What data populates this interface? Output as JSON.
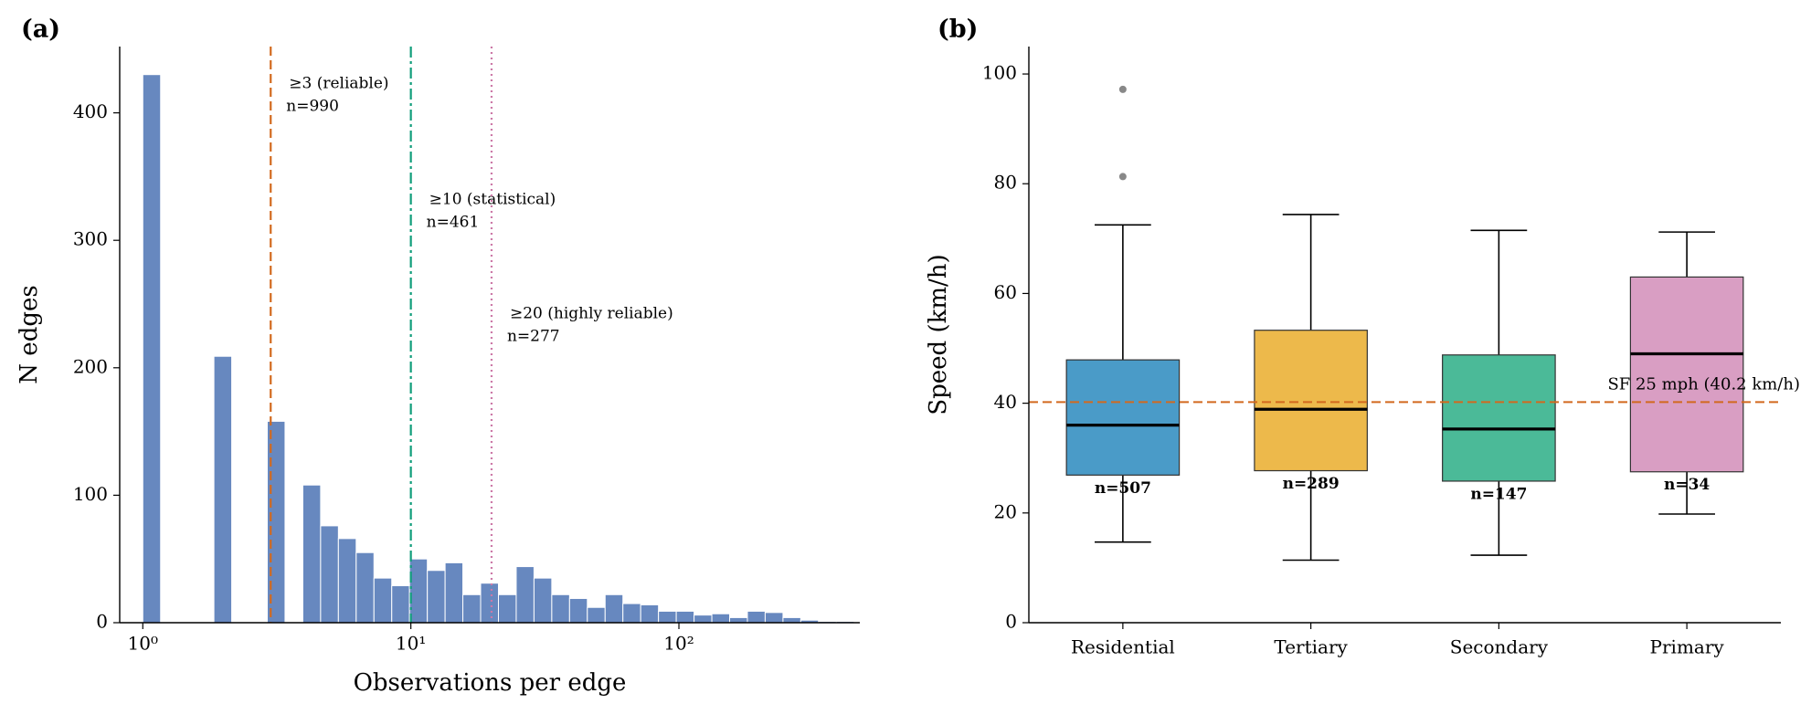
{
  "chart_data": [
    {
      "type": "histogram",
      "panel_label": "(a)",
      "x_label": "Observations per edge",
      "y_label": "N edges",
      "log_x": true,
      "color": "#6788bf",
      "bins": [
        1,
        1.165,
        1.358,
        1.581,
        1.842,
        2.146,
        2.5,
        2.913,
        3.393,
        3.953,
        4.606,
        5.366,
        6.252,
        7.284,
        8.486,
        9.886,
        11.52,
        13.42,
        15.63,
        18.21,
        21.22,
        24.72,
        28.8,
        33.55,
        39.09,
        45.54,
        53.06,
        61.81,
        72.02,
        83.9,
        97.75,
        113.9,
        132.7,
        154.6,
        180.1,
        209.8,
        244.5,
        284.8,
        331.8,
        386.6,
        450.4
      ],
      "values": [
        430,
        0,
        0,
        0,
        209,
        0,
        0,
        158,
        0,
        108,
        76,
        66,
        55,
        35,
        29,
        50,
        41,
        47,
        22,
        31,
        22,
        44,
        35,
        22,
        19,
        12,
        22,
        15,
        14,
        9,
        9,
        6,
        7,
        4,
        9,
        8,
        4,
        2,
        1,
        1
      ],
      "xlim": [
        0.82,
        473
      ],
      "xticks": [
        {
          "value": 1,
          "label": "10⁰"
        },
        {
          "value": 10,
          "label": "10¹"
        },
        {
          "value": 100,
          "label": "10²"
        }
      ],
      "ylim": [
        0,
        452
      ],
      "yticks": [
        0,
        100,
        200,
        300,
        400
      ],
      "thresholds": [
        {
          "value": 3,
          "label": "≥3 (reliable)",
          "count_label": "n=990",
          "color": "#d2691e",
          "dash": "dashed"
        },
        {
          "value": 10,
          "label": "≥10 (statistical)",
          "count_label": "n=461",
          "color": "#129e7c",
          "dash": "dashdot"
        },
        {
          "value": 20,
          "label": "≥20 (highly reliable)",
          "count_label": "n=277",
          "color": "#cc79a7",
          "dash": "dotted"
        }
      ]
    },
    {
      "type": "box",
      "panel_label": "(b)",
      "y_label": "Speed (km/h)",
      "ylim": [
        0,
        105
      ],
      "yticks": [
        0,
        20,
        40,
        60,
        80,
        100
      ],
      "boxes": [
        {
          "name": "Residential",
          "color": "#4a9bc8",
          "whisker_low": 14.7,
          "q1": 26.9,
          "median": 36,
          "q3": 47.9,
          "whisker_high": 72.5,
          "outliers": [
            81.3,
            97.2
          ],
          "n_label": "n=507"
        },
        {
          "name": "Tertiary",
          "color": "#edb94b",
          "whisker_low": 11.4,
          "q1": 27.7,
          "median": 38.9,
          "q3": 53.3,
          "whisker_high": 74.4,
          "outliers": [],
          "n_label": "n=289"
        },
        {
          "name": "Secondary",
          "color": "#4bba98",
          "whisker_low": 12.3,
          "q1": 25.8,
          "median": 35.3,
          "q3": 48.8,
          "whisker_high": 71.5,
          "outliers": [],
          "n_label": "n=147"
        },
        {
          "name": "Primary",
          "color": "#d99ec3",
          "whisker_low": 19.8,
          "q1": 27.5,
          "median": 49,
          "q3": 63,
          "whisker_high": 71.2,
          "outliers": [],
          "n_label": "n=34"
        }
      ],
      "reference": {
        "value": 40.2,
        "label": "SF 25 mph (40.2 km/h)",
        "color": "#d2691e"
      }
    }
  ]
}
